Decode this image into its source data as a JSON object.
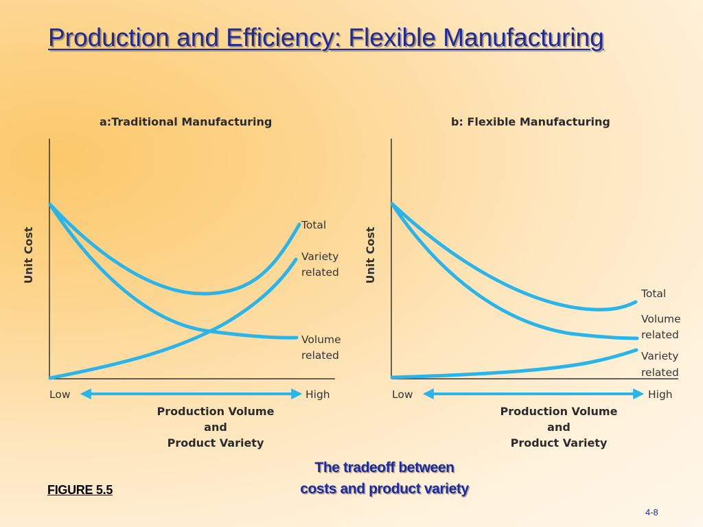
{
  "slide": {
    "title": "Production and Efficiency: Flexible Manufacturing",
    "caption_line1": "The tradeoff between",
    "caption_line2": "costs and product variety",
    "figure_label": "FIGURE 5.5",
    "page_number": "4-8"
  },
  "colors": {
    "title": "#1b2a9c",
    "curve": "#29b5ea",
    "axis": "#333333",
    "background_warm": "#fcc86a",
    "background_light": "#fff7ea"
  },
  "panels": [
    {
      "title": "a:Traditional Manufacturing",
      "y_axis_label": "Unit Cost",
      "x_low": "Low",
      "x_high": "High",
      "x_label_line1": "Production Volume",
      "x_label_line2": "and",
      "x_label_line3": "Product Variety",
      "curves": [
        {
          "label_line1": "Total",
          "label_line2": ""
        },
        {
          "label_line1": "Variety",
          "label_line2": "related"
        },
        {
          "label_line1": "Volume",
          "label_line2": "related"
        }
      ]
    },
    {
      "title": "b: Flexible Manufacturing",
      "y_axis_label": "Unit Cost",
      "x_low": "Low",
      "x_high": "High",
      "x_label_line1": "Production Volume",
      "x_label_line2": "and",
      "x_label_line3": "Product Variety",
      "curves": [
        {
          "label_line1": "Total",
          "label_line2": ""
        },
        {
          "label_line1": "Volume",
          "label_line2": "related"
        },
        {
          "label_line1": "Variety",
          "label_line2": "related"
        }
      ]
    }
  ]
}
